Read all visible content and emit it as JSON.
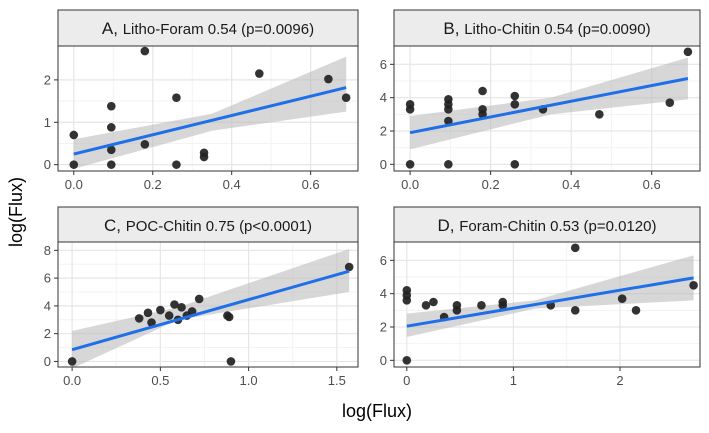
{
  "figure": {
    "xlabel": "log(Flux)",
    "ylabel": "log(Flux)"
  },
  "colors": {
    "line": "#1f6fe8",
    "band": "#bdbdbd",
    "point": "#222222",
    "strip": "#ececec",
    "grid_major": "#e6e6e6",
    "grid_minor": "#f3f3f3"
  },
  "chart_data": [
    {
      "type": "scatter",
      "title": "Litho-Foram 0.54 (p=0.0096)",
      "letter": "A,",
      "label_text": "Litho-Foram 0.54 (p=0.0096)",
      "xlim": [
        -0.04,
        0.72
      ],
      "ylim": [
        -0.15,
        2.8
      ],
      "xticks": [
        0.0,
        0.2,
        0.4,
        0.6
      ],
      "xtick_labels": [
        "0.0",
        "0.2",
        "0.4",
        "0.6"
      ],
      "yticks": [
        0,
        1,
        2
      ],
      "ytick_labels": [
        "0",
        "1",
        "2"
      ],
      "points": [
        [
          0,
          0
        ],
        [
          0,
          0.7
        ],
        [
          0.095,
          0
        ],
        [
          0.095,
          0.35
        ],
        [
          0.095,
          0.88
        ],
        [
          0.095,
          1.38
        ],
        [
          0.18,
          0.48
        ],
        [
          0.18,
          2.68
        ],
        [
          0.26,
          1.58
        ],
        [
          0.26,
          0
        ],
        [
          0.33,
          0.18
        ],
        [
          0.33,
          0.28
        ],
        [
          0.47,
          2.15
        ],
        [
          0.645,
          2.02
        ],
        [
          0.69,
          1.58
        ]
      ],
      "fit": {
        "x0": 0,
        "y0": 0.25,
        "x1": 0.69,
        "y1": 1.82
      },
      "band": [
        [
          0,
          -0.1,
          0.6
        ],
        [
          0.35,
          0.8,
          1.2
        ],
        [
          0.69,
          1.25,
          2.55
        ]
      ]
    },
    {
      "type": "scatter",
      "title": "Litho-Chitin 0.54 (p=0.0090)",
      "letter": "B,",
      "label_text": "Litho-Chitin 0.54 (p=0.0090)",
      "xlim": [
        -0.04,
        0.72
      ],
      "ylim": [
        -0.4,
        7.1
      ],
      "xticks": [
        0.0,
        0.2,
        0.4,
        0.6
      ],
      "xtick_labels": [
        "0.0",
        "0.2",
        "0.4",
        "0.6"
      ],
      "yticks": [
        0,
        2,
        4,
        6
      ],
      "ytick_labels": [
        "0",
        "2",
        "4",
        "6"
      ],
      "points": [
        [
          0,
          0
        ],
        [
          0,
          3.3
        ],
        [
          0,
          3.6
        ],
        [
          0.095,
          0
        ],
        [
          0.095,
          2.6
        ],
        [
          0.095,
          3.3
        ],
        [
          0.095,
          3.6
        ],
        [
          0.095,
          3.9
        ],
        [
          0.18,
          3.0
        ],
        [
          0.18,
          3.3
        ],
        [
          0.18,
          4.4
        ],
        [
          0.26,
          0
        ],
        [
          0.26,
          3.6
        ],
        [
          0.26,
          4.1
        ],
        [
          0.33,
          3.3
        ],
        [
          0.47,
          3.0
        ],
        [
          0.645,
          3.7
        ],
        [
          0.69,
          6.75
        ]
      ],
      "fit": {
        "x0": 0,
        "y0": 1.9,
        "x1": 0.69,
        "y1": 5.15
      },
      "band": [
        [
          0,
          0.9,
          2.9
        ],
        [
          0.35,
          3.0,
          4.0
        ],
        [
          0.69,
          3.9,
          6.4
        ]
      ]
    },
    {
      "type": "scatter",
      "title": "POC-Chitin 0.75 (p<0.0001)",
      "letter": "C,",
      "label_text": "POC-Chitin 0.75 (p<0.0001)",
      "xlim": [
        -0.08,
        1.62
      ],
      "ylim": [
        -0.4,
        8.6
      ],
      "xticks": [
        0.0,
        0.5,
        1.0,
        1.5
      ],
      "xtick_labels": [
        "0.0",
        "0.5",
        "1.0",
        "1.5"
      ],
      "yticks": [
        0,
        2,
        4,
        6,
        8
      ],
      "ytick_labels": [
        "0",
        "2",
        "4",
        "6",
        "8"
      ],
      "points": [
        [
          0,
          0
        ],
        [
          0.38,
          3.1
        ],
        [
          0.43,
          3.5
        ],
        [
          0.45,
          2.8
        ],
        [
          0.5,
          3.7
        ],
        [
          0.55,
          3.3
        ],
        [
          0.58,
          4.1
        ],
        [
          0.6,
          3.0
        ],
        [
          0.62,
          3.9
        ],
        [
          0.65,
          3.3
        ],
        [
          0.68,
          3.6
        ],
        [
          0.72,
          4.5
        ],
        [
          0.88,
          3.3
        ],
        [
          0.89,
          3.2
        ],
        [
          0.9,
          0
        ],
        [
          1.57,
          6.8
        ]
      ],
      "fit": {
        "x0": 0,
        "y0": 0.85,
        "x1": 1.57,
        "y1": 6.5
      },
      "band": [
        [
          0,
          -0.5,
          2.2
        ],
        [
          0.6,
          3.0,
          3.9
        ],
        [
          1.57,
          5.0,
          8.1
        ]
      ]
    },
    {
      "type": "scatter",
      "title": "Foram-Chitin 0.53 (p=0.0120)",
      "letter": "D,",
      "label_text": "Foram-Chitin 0.53 (p=0.0120)",
      "xlim": [
        -0.12,
        2.75
      ],
      "ylim": [
        -0.4,
        7.1
      ],
      "xticks": [
        0,
        1,
        2
      ],
      "xtick_labels": [
        "0",
        "1",
        "2"
      ],
      "yticks": [
        0,
        2,
        4,
        6
      ],
      "ytick_labels": [
        "0",
        "2",
        "4",
        "6"
      ],
      "points": [
        [
          0,
          0
        ],
        [
          0,
          3.6
        ],
        [
          0,
          3.9
        ],
        [
          0,
          4.2
        ],
        [
          0.18,
          3.3
        ],
        [
          0.25,
          3.5
        ],
        [
          0.35,
          2.6
        ],
        [
          0.47,
          3.3
        ],
        [
          0.47,
          3.0
        ],
        [
          0.7,
          3.3
        ],
        [
          0.9,
          3.5
        ],
        [
          0.9,
          3.3
        ],
        [
          1.35,
          3.3
        ],
        [
          1.58,
          3.0
        ],
        [
          1.58,
          6.75
        ],
        [
          2.02,
          3.7
        ],
        [
          2.15,
          3.0
        ],
        [
          2.69,
          4.5
        ]
      ],
      "fit": {
        "x0": 0,
        "y0": 2.05,
        "x1": 2.69,
        "y1": 4.95
      },
      "band": [
        [
          0,
          1.4,
          2.8
        ],
        [
          1.2,
          3.1,
          3.6
        ],
        [
          2.69,
          3.6,
          6.3
        ]
      ]
    }
  ]
}
